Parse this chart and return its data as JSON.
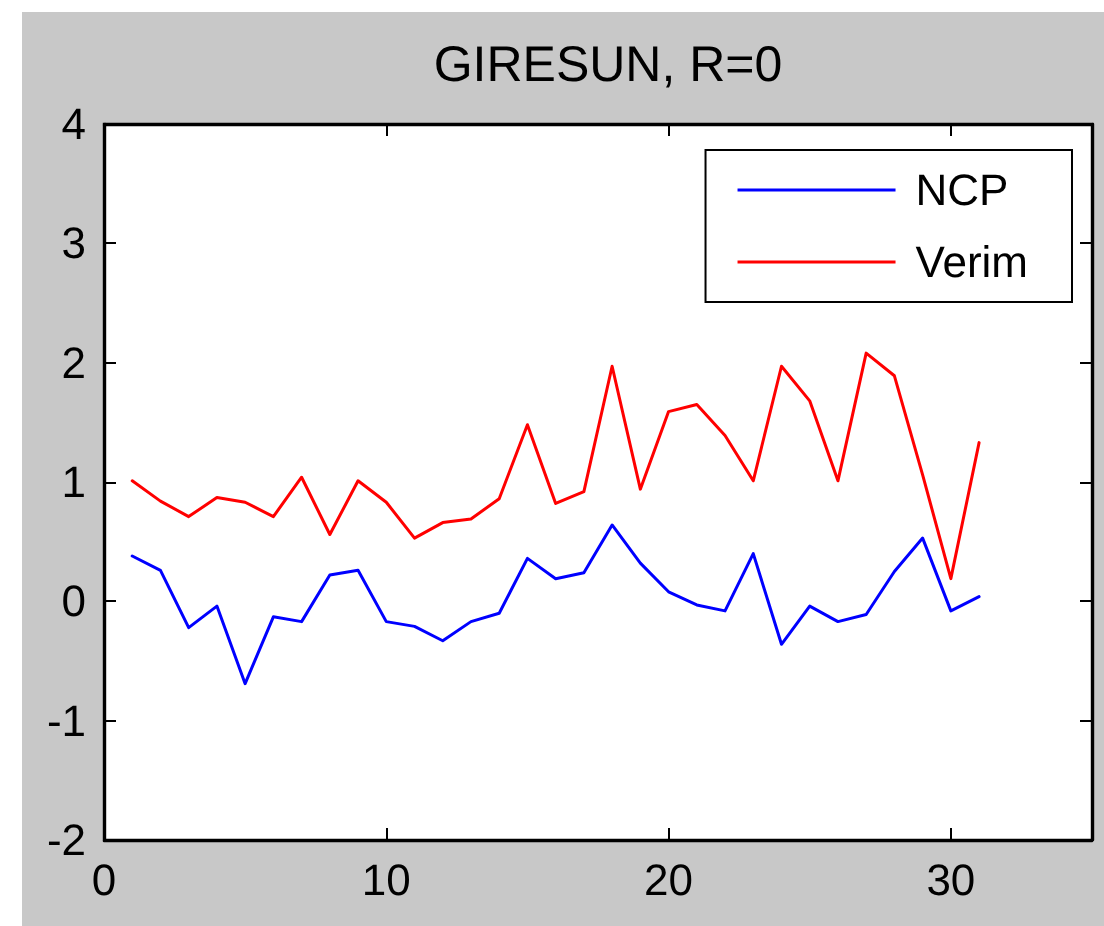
{
  "chart_data": {
    "type": "line",
    "title": "GIRESUN, R=0",
    "x": [
      1,
      2,
      3,
      4,
      5,
      6,
      7,
      8,
      9,
      10,
      11,
      12,
      13,
      14,
      15,
      16,
      17,
      18,
      19,
      20,
      21,
      22,
      23,
      24,
      25,
      26,
      27,
      28,
      29,
      30,
      31
    ],
    "series": [
      {
        "name": "NCP",
        "color": "#0000ff",
        "values": [
          0.38,
          0.26,
          -0.22,
          -0.04,
          -0.69,
          -0.13,
          -0.17,
          0.22,
          0.26,
          -0.17,
          -0.21,
          -0.33,
          -0.17,
          -0.1,
          0.36,
          0.19,
          0.24,
          0.64,
          0.32,
          0.08,
          -0.03,
          -0.08,
          0.4,
          -0.36,
          -0.04,
          -0.17,
          -0.11,
          0.25,
          0.53,
          -0.08,
          0.04
        ]
      },
      {
        "name": "Verim",
        "color": "#ff0000",
        "values": [
          1.01,
          0.84,
          0.71,
          0.87,
          0.83,
          0.71,
          1.04,
          0.56,
          1.01,
          0.83,
          0.53,
          0.66,
          0.69,
          0.86,
          1.48,
          0.82,
          0.92,
          1.97,
          0.94,
          1.59,
          1.65,
          1.39,
          1.01,
          1.97,
          1.68,
          1.01,
          2.08,
          1.89,
          1.06,
          0.19,
          1.33
        ]
      }
    ],
    "xlim": [
      0,
      35
    ],
    "xticks": [
      0,
      10,
      20,
      30
    ],
    "ylim": [
      -2,
      4
    ],
    "yticks": [
      -2,
      -1,
      0,
      1,
      2,
      3,
      4
    ],
    "legend": "top right",
    "marker": "none",
    "line_style": "solid"
  }
}
